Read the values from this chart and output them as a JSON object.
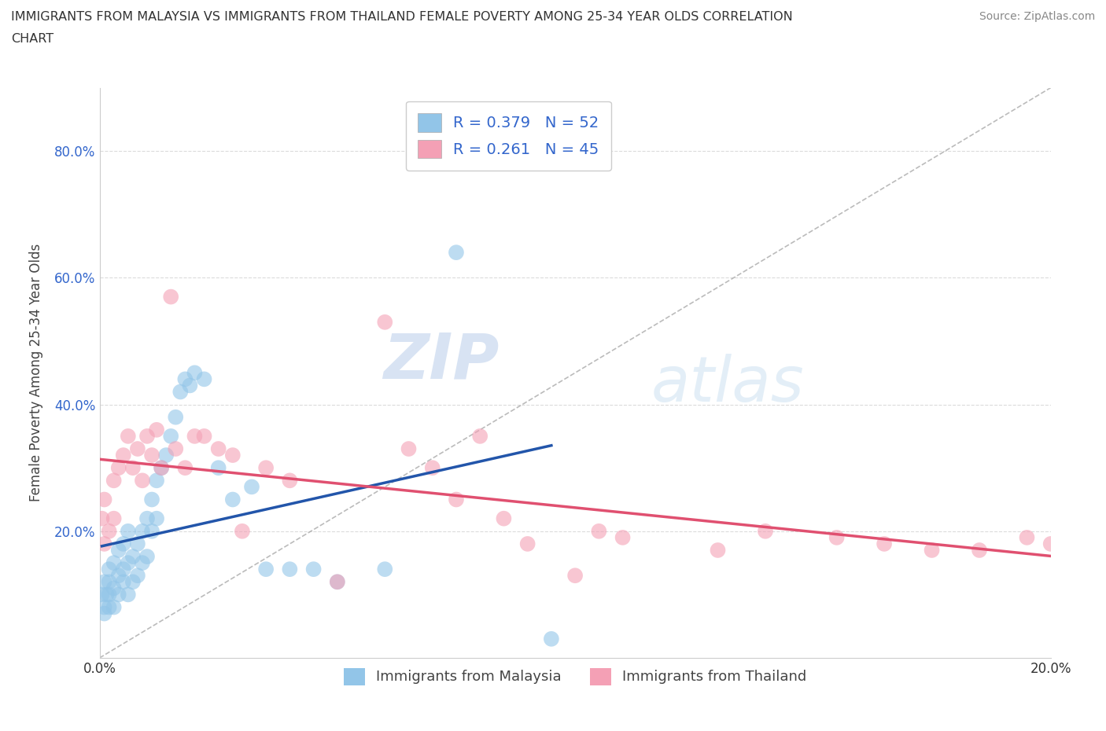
{
  "title_line1": "IMMIGRANTS FROM MALAYSIA VS IMMIGRANTS FROM THAILAND FEMALE POVERTY AMONG 25-34 YEAR OLDS CORRELATION",
  "title_line2": "CHART",
  "source": "Source: ZipAtlas.com",
  "ylabel": "Female Poverty Among 25-34 Year Olds",
  "xlim": [
    0.0,
    0.2
  ],
  "ylim": [
    0.0,
    0.9
  ],
  "malaysia_color": "#92C5E8",
  "malaysia_line_color": "#2255AA",
  "thailand_color": "#F4A0B5",
  "thailand_line_color": "#E05070",
  "diag_color": "#AAAAAA",
  "malaysia_R": 0.379,
  "malaysia_N": 52,
  "thailand_R": 0.261,
  "thailand_N": 45,
  "watermark_zip": "ZIP",
  "watermark_atlas": "atlas",
  "background_color": "#ffffff",
  "grid_color": "#cccccc",
  "malaysia_x": [
    0.0005,
    0.001,
    0.001,
    0.001,
    0.0015,
    0.002,
    0.002,
    0.002,
    0.002,
    0.003,
    0.003,
    0.003,
    0.004,
    0.004,
    0.004,
    0.005,
    0.005,
    0.005,
    0.006,
    0.006,
    0.006,
    0.007,
    0.007,
    0.008,
    0.008,
    0.009,
    0.009,
    0.01,
    0.01,
    0.011,
    0.011,
    0.012,
    0.012,
    0.013,
    0.014,
    0.015,
    0.016,
    0.017,
    0.018,
    0.019,
    0.02,
    0.022,
    0.025,
    0.028,
    0.032,
    0.035,
    0.04,
    0.045,
    0.05,
    0.06,
    0.075,
    0.095
  ],
  "malaysia_y": [
    0.1,
    0.08,
    0.12,
    0.07,
    0.1,
    0.12,
    0.08,
    0.14,
    0.1,
    0.15,
    0.11,
    0.08,
    0.13,
    0.17,
    0.1,
    0.14,
    0.18,
    0.12,
    0.15,
    0.2,
    0.1,
    0.16,
    0.12,
    0.18,
    0.13,
    0.2,
    0.15,
    0.22,
    0.16,
    0.25,
    0.2,
    0.28,
    0.22,
    0.3,
    0.32,
    0.35,
    0.38,
    0.42,
    0.44,
    0.43,
    0.45,
    0.44,
    0.3,
    0.25,
    0.27,
    0.14,
    0.14,
    0.14,
    0.12,
    0.14,
    0.64,
    0.03
  ],
  "thailand_x": [
    0.0005,
    0.001,
    0.001,
    0.002,
    0.003,
    0.003,
    0.004,
    0.005,
    0.006,
    0.007,
    0.008,
    0.009,
    0.01,
    0.011,
    0.012,
    0.013,
    0.015,
    0.016,
    0.018,
    0.02,
    0.022,
    0.025,
    0.028,
    0.03,
    0.035,
    0.04,
    0.05,
    0.06,
    0.065,
    0.07,
    0.075,
    0.08,
    0.085,
    0.09,
    0.1,
    0.105,
    0.11,
    0.13,
    0.14,
    0.155,
    0.165,
    0.175,
    0.185,
    0.195,
    0.2
  ],
  "thailand_y": [
    0.22,
    0.18,
    0.25,
    0.2,
    0.22,
    0.28,
    0.3,
    0.32,
    0.35,
    0.3,
    0.33,
    0.28,
    0.35,
    0.32,
    0.36,
    0.3,
    0.57,
    0.33,
    0.3,
    0.35,
    0.35,
    0.33,
    0.32,
    0.2,
    0.3,
    0.28,
    0.12,
    0.53,
    0.33,
    0.3,
    0.25,
    0.35,
    0.22,
    0.18,
    0.13,
    0.2,
    0.19,
    0.17,
    0.2,
    0.19,
    0.18,
    0.17,
    0.17,
    0.19,
    0.18
  ]
}
